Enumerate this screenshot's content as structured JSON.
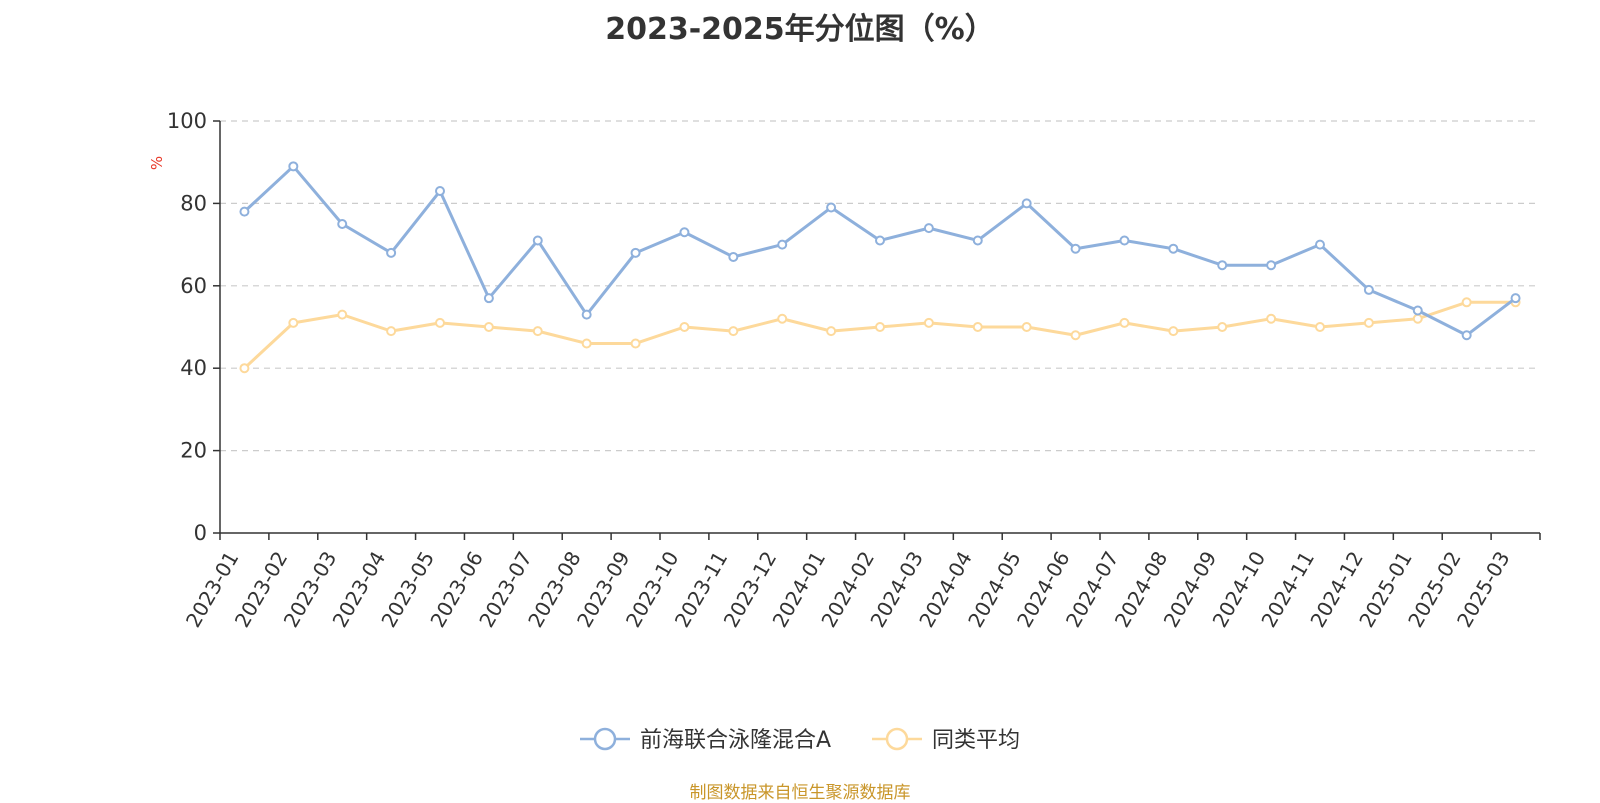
{
  "chart_data": {
    "type": "line",
    "title": "2023-2025年分位图（%）",
    "ylabel": "%",
    "xlabel": "",
    "ylim": [
      0,
      100
    ],
    "yticks": [
      0,
      20,
      40,
      60,
      80,
      100
    ],
    "grid": true,
    "legend_position": "bottom",
    "categories": [
      "2023-01",
      "2023-02",
      "2023-03",
      "2023-04",
      "2023-05",
      "2023-06",
      "2023-07",
      "2023-08",
      "2023-09",
      "2023-10",
      "2023-11",
      "2023-12",
      "2024-01",
      "2024-02",
      "2024-03",
      "2024-04",
      "2024-05",
      "2024-06",
      "2024-07",
      "2024-08",
      "2024-09",
      "2024-10",
      "2024-11",
      "2024-12",
      "2025-01",
      "2025-02",
      "2025-03"
    ],
    "series": [
      {
        "name": "前海联合泳隆混合A",
        "color": "#8eb0dc",
        "values": [
          78,
          89,
          75,
          68,
          83,
          57,
          71,
          53,
          68,
          73,
          67,
          70,
          79,
          71,
          74,
          71,
          80,
          69,
          71,
          69,
          65,
          65,
          70,
          59,
          54,
          48,
          57
        ]
      },
      {
        "name": "同类平均",
        "color": "#fdd99b",
        "values": [
          40,
          51,
          53,
          49,
          51,
          50,
          49,
          46,
          46,
          50,
          49,
          52,
          49,
          50,
          51,
          50,
          50,
          48,
          51,
          49,
          50,
          52,
          50,
          51,
          52,
          56,
          56
        ]
      }
    ]
  },
  "footer": {
    "source": "制图数据来自恒生聚源数据库"
  }
}
